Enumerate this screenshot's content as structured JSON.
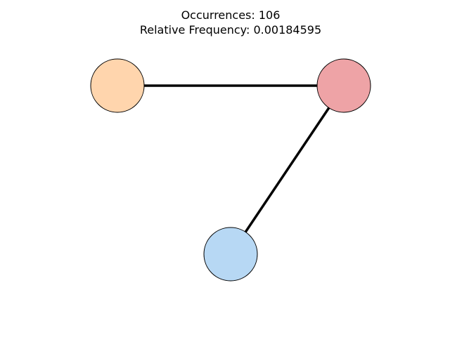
{
  "title": {
    "occurrences": "Occurrences: 106",
    "relative_frequency": "Relative Frequency: 0.00184595"
  },
  "nodes": [
    {
      "id": "n1",
      "color": "#ffd5ad"
    },
    {
      "id": "n2",
      "color": "#eea3a6"
    },
    {
      "id": "n3",
      "color": "#b7d8f4"
    }
  ],
  "edges": [
    {
      "from": "n1",
      "to": "n2"
    },
    {
      "from": "n2",
      "to": "n3"
    }
  ]
}
